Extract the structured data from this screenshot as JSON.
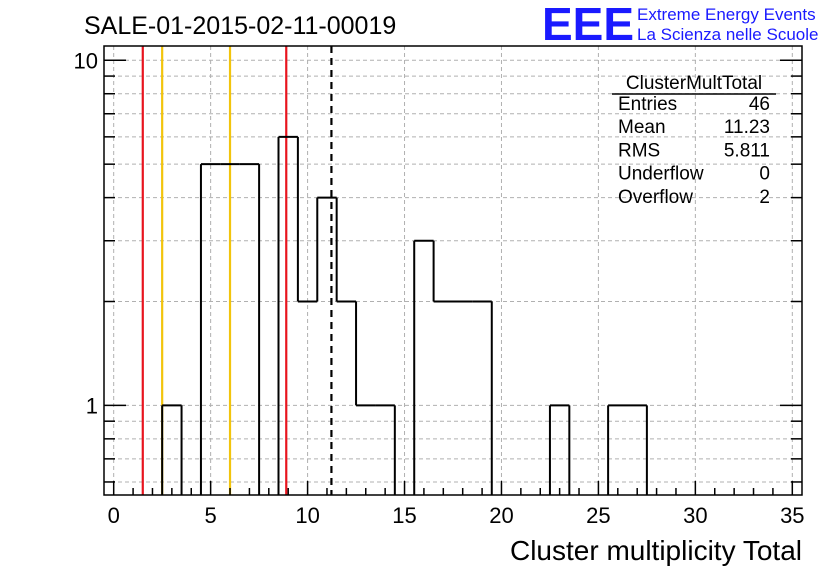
{
  "chart_data": {
    "type": "bar",
    "title": "SALE-01-2015-02-11-00019",
    "xlabel": "Cluster multiplicity Total",
    "ylabel": "",
    "y_scale": "log",
    "xlim": [
      -0.5,
      35.5
    ],
    "ylim": [
      0.55,
      11
    ],
    "grid": true,
    "bin_width": 1,
    "x_tick_labels": [
      "0",
      "5",
      "10",
      "15",
      "20",
      "25",
      "30",
      "35"
    ],
    "y_tick_labels": [
      "1",
      "10"
    ],
    "bins": [
      {
        "x": 3,
        "value": 1
      },
      {
        "x": 5,
        "value": 5
      },
      {
        "x": 6,
        "value": 5
      },
      {
        "x": 7,
        "value": 5
      },
      {
        "x": 9,
        "value": 6
      },
      {
        "x": 10,
        "value": 2
      },
      {
        "x": 11,
        "value": 4
      },
      {
        "x": 12,
        "value": 2
      },
      {
        "x": 13,
        "value": 1
      },
      {
        "x": 14,
        "value": 1
      },
      {
        "x": 16,
        "value": 3
      },
      {
        "x": 17,
        "value": 2
      },
      {
        "x": 18,
        "value": 2
      },
      {
        "x": 19,
        "value": 2
      },
      {
        "x": 23,
        "value": 1
      },
      {
        "x": 26,
        "value": 1
      },
      {
        "x": 27,
        "value": 1
      }
    ],
    "vertical_lines": [
      {
        "x": 1.5,
        "color": "#e8141e",
        "style": "solid"
      },
      {
        "x": 2.5,
        "color": "#f2c40c",
        "style": "solid"
      },
      {
        "x": 6.0,
        "color": "#f2c40c",
        "style": "solid"
      },
      {
        "x": 8.9,
        "color": "#e8141e",
        "style": "solid"
      },
      {
        "x": 11.23,
        "color": "#000000",
        "style": "dashed"
      }
    ],
    "stats": {
      "name": "ClusterMultTotal",
      "rows": [
        {
          "label": "Entries",
          "value": "46"
        },
        {
          "label": "Mean",
          "value": "11.23"
        },
        {
          "label": "RMS",
          "value": "5.811"
        },
        {
          "label": "Underflow",
          "value": "0"
        },
        {
          "label": "Overflow",
          "value": "2"
        }
      ]
    }
  },
  "logo": {
    "mark": "EEE",
    "line1": "Extreme Energy Events",
    "line2": "La Scienza nelle Scuole",
    "color": "#1a1aff"
  }
}
